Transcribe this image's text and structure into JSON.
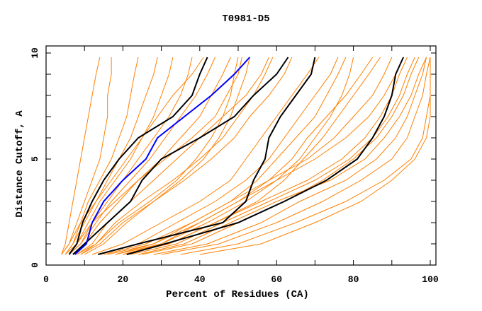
{
  "chart_data": {
    "type": "line",
    "title": "T0981-D5",
    "xlabel": "Percent of Residues (CA)",
    "ylabel": "Distance Cutoff, A",
    "xlim": [
      0,
      100
    ],
    "ylim": [
      0,
      10
    ],
    "x_ticks": [
      "0",
      "20",
      "40",
      "60",
      "80",
      "100"
    ],
    "x_tick_values": [
      0,
      20,
      40,
      60,
      80,
      100
    ],
    "y_ticks": [
      "0",
      "5",
      "10"
    ],
    "y_tick_values": [
      0,
      5,
      10
    ],
    "grid": false,
    "colors": {
      "others": "#ff8000",
      "highlight": "#000000",
      "selected": "#0000ff"
    },
    "cutoffs": [
      0.5,
      1,
      2,
      3,
      4,
      5,
      6,
      7,
      8,
      9,
      9.8
    ],
    "series_others": [
      [
        4,
        5,
        6,
        7,
        8,
        9,
        10,
        11,
        12,
        13,
        14
      ],
      [
        4,
        6,
        8,
        10,
        12,
        14,
        15,
        16,
        16,
        17,
        17
      ],
      [
        5,
        7,
        9,
        11,
        14,
        17,
        19,
        21,
        22,
        23,
        24
      ],
      [
        5,
        7,
        10,
        13,
        16,
        19,
        22,
        24,
        26,
        28,
        29
      ],
      [
        6,
        8,
        11,
        14,
        18,
        22,
        25,
        28,
        30,
        32,
        33
      ],
      [
        5,
        8,
        12,
        16,
        20,
        24,
        28,
        32,
        35,
        37,
        38
      ],
      [
        6,
        9,
        13,
        17,
        22,
        27,
        31,
        35,
        39,
        42,
        44
      ],
      [
        7,
        10,
        14,
        19,
        24,
        30,
        35,
        40,
        43,
        46,
        48
      ],
      [
        6,
        9,
        12,
        18,
        24,
        31,
        38,
        44,
        47,
        50,
        51
      ],
      [
        8,
        12,
        16,
        22,
        28,
        34,
        40,
        46,
        52,
        56,
        58
      ],
      [
        9,
        13,
        18,
        25,
        33,
        40,
        46,
        50,
        54,
        57,
        59
      ],
      [
        10,
        15,
        21,
        28,
        36,
        43,
        49,
        53,
        58,
        62,
        64
      ],
      [
        4,
        6,
        9,
        13,
        17,
        21,
        25,
        29,
        33,
        38,
        41
      ],
      [
        9,
        14,
        20,
        28,
        35,
        41,
        45,
        48,
        50,
        52,
        53
      ],
      [
        8,
        13,
        19,
        27,
        34,
        39,
        43,
        46,
        48,
        49,
        50
      ],
      [
        12,
        20,
        30,
        40,
        48,
        52,
        56,
        60,
        64,
        68,
        71
      ],
      [
        14,
        24,
        34,
        44,
        52,
        58,
        62,
        66,
        70,
        74,
        76
      ],
      [
        15,
        26,
        38,
        48,
        55,
        60,
        65,
        70,
        73,
        76,
        78
      ],
      [
        18,
        30,
        42,
        52,
        60,
        66,
        70,
        74,
        77,
        79,
        80
      ],
      [
        16,
        28,
        40,
        50,
        58,
        64,
        68,
        73,
        78,
        82,
        85
      ],
      [
        20,
        32,
        44,
        55,
        62,
        67,
        72,
        76,
        80,
        84,
        87
      ],
      [
        20,
        32,
        44,
        56,
        68,
        77,
        83,
        87,
        90,
        92,
        94
      ],
      [
        22,
        34,
        46,
        58,
        70,
        79,
        85,
        89,
        92,
        94,
        96
      ],
      [
        25,
        38,
        50,
        62,
        72,
        80,
        86,
        90,
        93,
        95,
        97
      ],
      [
        24,
        36,
        48,
        60,
        74,
        83,
        88,
        92,
        95,
        97,
        99
      ],
      [
        28,
        42,
        56,
        66,
        78,
        86,
        91,
        94,
        96,
        98,
        99
      ],
      [
        30,
        45,
        60,
        72,
        82,
        90,
        94,
        96,
        98,
        99,
        100
      ],
      [
        20,
        30,
        40,
        50,
        60,
        70,
        78,
        84,
        88,
        91,
        93
      ],
      [
        35,
        50,
        65,
        78,
        88,
        95,
        98,
        99,
        100,
        100,
        100
      ],
      [
        40,
        56,
        70,
        82,
        90,
        96,
        99,
        100,
        100,
        100,
        100
      ],
      [
        18,
        28,
        38,
        48,
        58,
        68,
        75,
        80,
        85,
        88,
        90
      ]
    ],
    "series_highlight": [
      [
        6,
        8,
        9.5,
        12,
        15,
        19,
        24,
        33,
        38,
        40,
        42
      ],
      [
        7,
        10,
        16,
        22,
        25,
        30,
        40,
        49,
        54,
        60,
        63
      ],
      [
        13.5,
        24,
        46,
        52,
        54,
        57,
        58,
        61,
        65,
        69,
        70
      ],
      [
        21,
        31,
        50,
        62,
        73,
        81,
        85,
        88,
        90,
        91,
        93
      ]
    ],
    "series_selected": [
      [
        7.5,
        10.5,
        12,
        15,
        20,
        26,
        29,
        36,
        43,
        49,
        53
      ]
    ]
  }
}
